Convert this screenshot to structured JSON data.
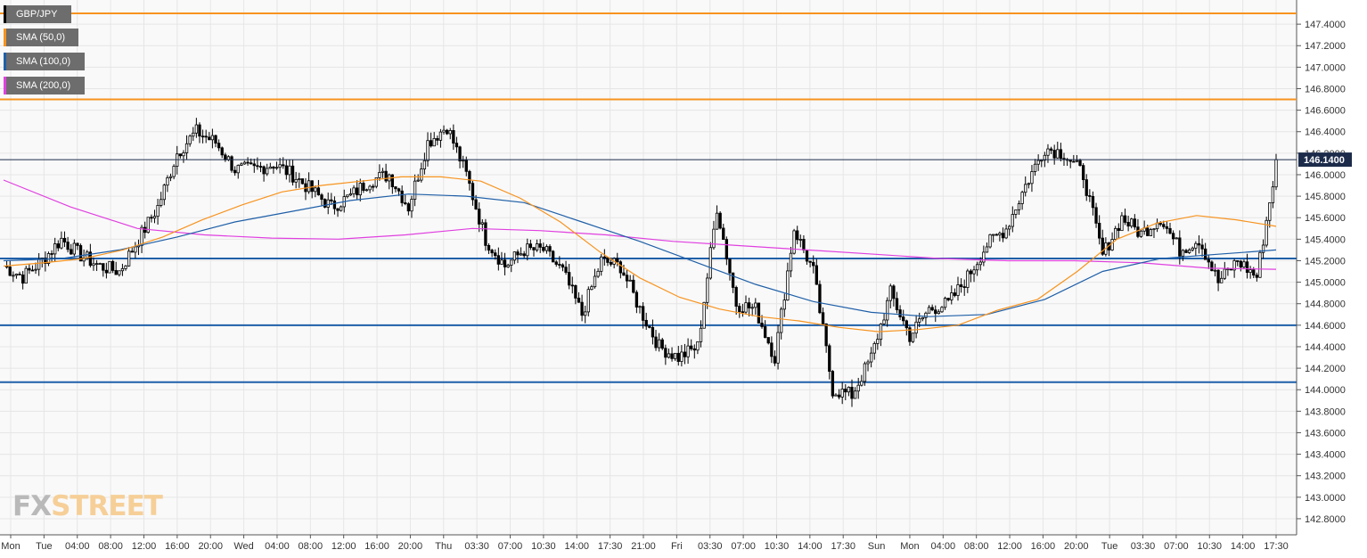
{
  "chart_data": {
    "type": "candlestick",
    "symbol": "GBP/JPY",
    "legend": [
      {
        "label": "GBP/JPY",
        "color": "#000000"
      },
      {
        "label": "SMA (50,0)",
        "color": "#f7931e"
      },
      {
        "label": "SMA (100,0)",
        "color": "#1f5fa8"
      },
      {
        "label": "SMA (200,0)",
        "color": "#e040e0"
      }
    ],
    "ylim": [
      142.7,
      147.6
    ],
    "y_ticks": [
      "142.8000",
      "143.0000",
      "143.2000",
      "143.4000",
      "143.6000",
      "143.8000",
      "144.0000",
      "144.2000",
      "144.4000",
      "144.6000",
      "144.8000",
      "145.0000",
      "145.2000",
      "145.4000",
      "145.6000",
      "145.8000",
      "146.0000",
      "146.2000",
      "146.4000",
      "146.6000",
      "146.8000",
      "147.0000",
      "147.2000",
      "147.4000"
    ],
    "x_ticks": [
      "Mon",
      "Tue",
      "04:00",
      "08:00",
      "12:00",
      "16:00",
      "20:00",
      "Wed",
      "04:00",
      "08:00",
      "12:00",
      "16:00",
      "20:00",
      "Thu",
      "03:30",
      "07:00",
      "10:30",
      "14:00",
      "17:30",
      "21:00",
      "Fri",
      "03:30",
      "07:00",
      "10:30",
      "14:00",
      "17:30",
      "Sun",
      "Mon",
      "04:00",
      "08:00",
      "12:00",
      "16:00",
      "20:00",
      "Tue",
      "03:30",
      "07:00",
      "10:30",
      "14:00",
      "17:30"
    ],
    "current_price": "146.1400",
    "horizontal_levels": [
      {
        "value": 147.5,
        "color": "#f7931e"
      },
      {
        "value": 146.7,
        "color": "#f7931e"
      },
      {
        "value": 145.22,
        "color": "#1f5fa8"
      },
      {
        "value": 144.6,
        "color": "#1f5fa8"
      },
      {
        "value": 144.07,
        "color": "#1f5fa8"
      }
    ],
    "price_path": [
      145.15,
      145.05,
      145.2,
      145.4,
      145.25,
      145.15,
      145.1,
      145.4,
      145.7,
      146.2,
      146.4,
      146.3,
      146.05,
      146.05,
      146.1,
      146.0,
      145.85,
      145.7,
      145.8,
      145.95,
      146.0,
      145.7,
      146.3,
      146.45,
      146.0,
      145.4,
      145.15,
      145.3,
      145.3,
      145.1,
      144.7,
      145.2,
      145.15,
      144.75,
      144.4,
      144.3,
      144.4,
      145.7,
      144.8,
      144.75,
      144.3,
      145.5,
      145.1,
      144.0,
      143.95,
      144.3,
      144.9,
      144.5,
      144.75,
      144.8,
      145.05,
      145.35,
      145.5,
      145.9,
      146.25,
      146.2,
      146.0,
      145.25,
      145.6,
      145.45,
      145.6,
      145.3,
      145.4,
      145.0,
      145.2,
      145.05,
      146.1
    ],
    "sma50": [
      145.15,
      145.18,
      145.22,
      145.3,
      145.42,
      145.58,
      145.72,
      145.84,
      145.9,
      145.94,
      145.98,
      145.98,
      145.94,
      145.78,
      145.56,
      145.28,
      145.04,
      144.86,
      144.75,
      144.68,
      144.64,
      144.58,
      144.54,
      144.56,
      144.6,
      144.74,
      144.84,
      145.1,
      145.4,
      145.55,
      145.62,
      145.58,
      145.52
    ],
    "sma100": [
      145.2,
      145.22,
      145.3,
      145.42,
      145.56,
      145.66,
      145.76,
      145.82,
      145.8,
      145.74,
      145.56,
      145.38,
      145.18,
      144.98,
      144.82,
      144.72,
      144.68,
      144.7,
      144.84,
      145.1,
      145.22,
      145.26,
      145.3
    ],
    "sma200": [
      145.95,
      145.7,
      145.5,
      145.44,
      145.41,
      145.4,
      145.44,
      145.5,
      145.48,
      145.44,
      145.38,
      145.34,
      145.3,
      145.26,
      145.22,
      145.2,
      145.2,
      145.18,
      145.13,
      145.12
    ]
  },
  "logo": {
    "fx": "FX",
    "street": "STREET"
  }
}
